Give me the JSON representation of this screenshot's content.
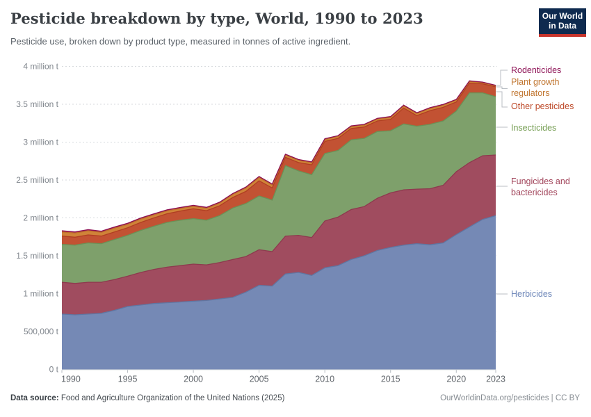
{
  "header": {
    "title": "Pesticide breakdown by type, World, 1990 to 2023",
    "subtitle": "Pesticide use, broken down by product type, measured in tonnes of active ingredient."
  },
  "logo": {
    "line1": "Our World",
    "line2": "in Data",
    "bg": "#0e2a4f",
    "stripe": "#c7342c"
  },
  "footer": {
    "source_label": "Data source:",
    "source_text": " Food and Agriculture Organization of the United Nations (2025)",
    "credit": "OurWorldinData.org/pesticides | CC BY"
  },
  "chart_data": {
    "type": "area",
    "stacked": true,
    "title": "Pesticide breakdown by type, World, 1990 to 2023",
    "xlabel": "",
    "ylabel": "tonnes of active ingredient",
    "xlim": [
      1990,
      2023
    ],
    "ylim": [
      0,
      4000000
    ],
    "grid": "dashed-horizontal",
    "legend_position": "right",
    "x": [
      1990,
      1991,
      1992,
      1993,
      1994,
      1995,
      1996,
      1997,
      1998,
      1999,
      2000,
      2001,
      2002,
      2003,
      2004,
      2005,
      2006,
      2007,
      2008,
      2009,
      2010,
      2011,
      2012,
      2013,
      2014,
      2015,
      2016,
      2017,
      2018,
      2019,
      2020,
      2021,
      2022,
      2023
    ],
    "series": [
      {
        "name": "Herbicides",
        "color": "#7589b5",
        "line": "#5f76a2",
        "values": [
          730000,
          720000,
          730000,
          740000,
          780000,
          830000,
          850000,
          870000,
          880000,
          890000,
          900000,
          910000,
          930000,
          950000,
          1020000,
          1110000,
          1100000,
          1260000,
          1280000,
          1240000,
          1340000,
          1370000,
          1450000,
          1500000,
          1570000,
          1610000,
          1640000,
          1660000,
          1645000,
          1670000,
          1780000,
          1880000,
          1980000,
          2030000
        ]
      },
      {
        "name": "Fungicides and bactericides",
        "color": "#a04c5f",
        "line": "#8d3a4e",
        "values": [
          420000,
          415000,
          420000,
          410000,
          405000,
          400000,
          430000,
          450000,
          470000,
          480000,
          490000,
          470000,
          480000,
          500000,
          470000,
          470000,
          455000,
          500000,
          490000,
          500000,
          620000,
          640000,
          660000,
          650000,
          690000,
          720000,
          730000,
          720000,
          740000,
          760000,
          830000,
          850000,
          840000,
          800000
        ]
      },
      {
        "name": "Insecticides",
        "color": "#7ea06b",
        "line": "#6a9156",
        "values": [
          500000,
          505000,
          520000,
          510000,
          530000,
          540000,
          555000,
          570000,
          590000,
          600000,
          600000,
          590000,
          620000,
          680000,
          700000,
          710000,
          680000,
          930000,
          850000,
          830000,
          890000,
          880000,
          920000,
          900000,
          880000,
          820000,
          870000,
          830000,
          850000,
          850000,
          800000,
          920000,
          830000,
          770000
        ]
      },
      {
        "name": "Other pesticides",
        "color": "#c25233",
        "line": "#b03e22",
        "values": [
          110000,
          105000,
          105000,
          100000,
          100000,
          100000,
          105000,
          110000,
          115000,
          120000,
          130000,
          125000,
          130000,
          140000,
          160000,
          200000,
          160000,
          110000,
          110000,
          130000,
          160000,
          160000,
          150000,
          150000,
          140000,
          150000,
          210000,
          140000,
          180000,
          180000,
          120000,
          130000,
          120000,
          130000
        ]
      },
      {
        "name": "Plant growth regulators",
        "color": "#d08339",
        "line": "#bd6f28",
        "values": [
          55000,
          55000,
          55000,
          50000,
          50000,
          45000,
          45000,
          40000,
          38000,
          35000,
          33000,
          32000,
          35000,
          40000,
          45000,
          45000,
          40000,
          30000,
          30000,
          28000,
          25000,
          25000,
          25000,
          25000,
          25000,
          28000,
          28000,
          28000,
          30000,
          28000,
          25000,
          20000,
          15000,
          12000
        ]
      },
      {
        "name": "Rodenticides",
        "color": "#a41d61",
        "line": "#8e0f52",
        "values": [
          15000,
          15000,
          15000,
          15000,
          15000,
          14000,
          14000,
          14000,
          13000,
          13000,
          13000,
          12000,
          12000,
          12000,
          12000,
          12000,
          12000,
          11000,
          11000,
          11000,
          10000,
          10000,
          10000,
          10000,
          10000,
          10000,
          10000,
          10000,
          10000,
          10000,
          9000,
          9000,
          8000,
          8000
        ]
      }
    ],
    "y_ticks": [
      {
        "value": 0,
        "label": "0 t"
      },
      {
        "value": 500000,
        "label": "500,000 t"
      },
      {
        "value": 1000000,
        "label": "1 million t"
      },
      {
        "value": 1500000,
        "label": "1.5 million t"
      },
      {
        "value": 2000000,
        "label": "2 million t"
      },
      {
        "value": 2500000,
        "label": "2.5 million t"
      },
      {
        "value": 3000000,
        "label": "3 million t"
      },
      {
        "value": 3500000,
        "label": "3.5 million t"
      },
      {
        "value": 4000000,
        "label": "4 million t"
      }
    ],
    "x_ticks": [
      1990,
      1995,
      2000,
      2005,
      2010,
      2015,
      2020,
      2023
    ],
    "legend": [
      {
        "label": "Rodenticides",
        "color": "#8e1457"
      },
      {
        "label": "Plant growth regulators",
        "color": "#c0752f"
      },
      {
        "label": "Other pesticides",
        "color": "#bc4726"
      },
      {
        "label": "Insecticides",
        "color": "#769e54"
      },
      {
        "label": "Fungicides and bactericides",
        "color": "#a1445a"
      },
      {
        "label": "Herbicides",
        "color": "#6e87b9"
      }
    ]
  }
}
